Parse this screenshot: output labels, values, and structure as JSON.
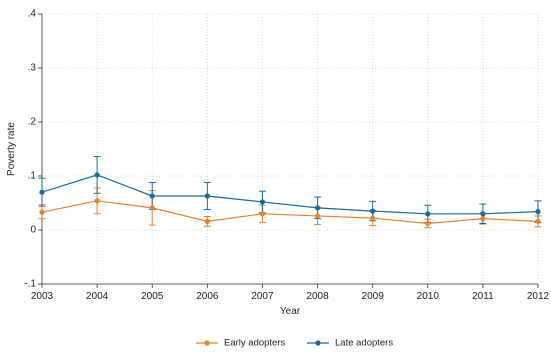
{
  "chart_data": {
    "type": "line",
    "title": "",
    "xlabel": "Year",
    "ylabel": "Poverty rate",
    "x": [
      2003,
      2004,
      2005,
      2006,
      2007,
      2008,
      2009,
      2010,
      2011,
      2012
    ],
    "x_tick_labels": [
      "2003",
      "2004",
      "2005",
      "2006",
      "2007",
      "2008",
      "2009",
      "2010",
      "2011",
      "2012"
    ],
    "ylim": [
      -0.1,
      0.4
    ],
    "y_ticks": [
      -0.1,
      0,
      0.1,
      0.2,
      0.3,
      0.4
    ],
    "y_tick_labels": [
      "-.1",
      "0",
      ".1",
      ".2",
      ".3",
      ".4"
    ],
    "grid": true,
    "error_bars": true,
    "legend_position": "bottom",
    "series": [
      {
        "name": "Early adopters",
        "color": "#e8822b",
        "values": [
          0.033,
          0.054,
          0.041,
          0.016,
          0.03,
          0.026,
          0.022,
          0.012,
          0.021,
          0.016
        ],
        "lower": [
          0.021,
          0.03,
          0.009,
          0.007,
          0.014,
          0.01,
          0.008,
          0.004,
          0.011,
          0.006
        ],
        "upper": [
          0.047,
          0.078,
          0.073,
          0.025,
          0.046,
          0.042,
          0.036,
          0.02,
          0.031,
          0.026
        ]
      },
      {
        "name": "Late adopters",
        "color": "#1a6b97",
        "values": [
          0.07,
          0.102,
          0.063,
          0.063,
          0.052,
          0.041,
          0.035,
          0.03,
          0.03,
          0.034
        ],
        "lower": [
          0.044,
          0.068,
          0.038,
          0.038,
          0.032,
          0.021,
          0.017,
          0.014,
          0.012,
          0.014
        ],
        "upper": [
          0.096,
          0.136,
          0.088,
          0.088,
          0.072,
          0.061,
          0.053,
          0.046,
          0.048,
          0.054
        ]
      }
    ]
  }
}
